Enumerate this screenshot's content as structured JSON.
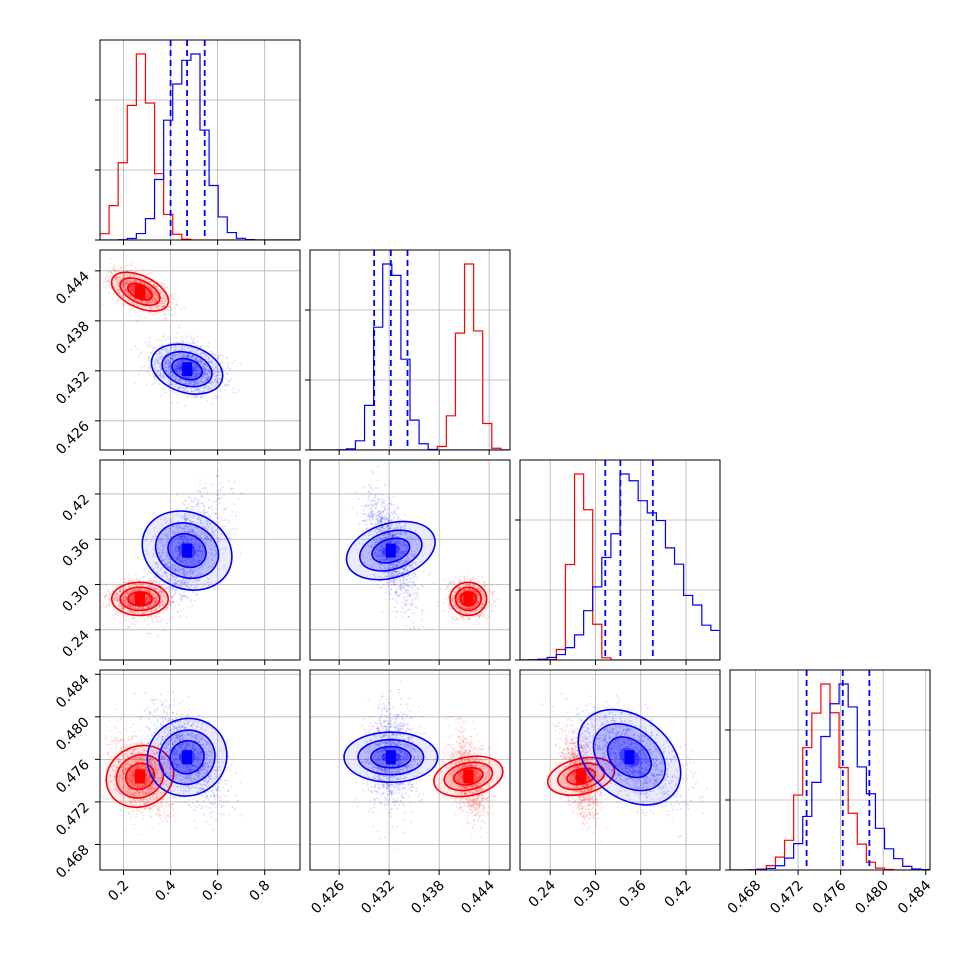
{
  "chart_data": {
    "type": "corner",
    "n_params": 4,
    "grid": true,
    "colors": {
      "red": "#ff0000",
      "blue": "#0000ff"
    },
    "params": [
      {
        "range": [
          0.1,
          0.95
        ],
        "ticks": [
          "0.2",
          "0.4",
          "0.6",
          "0.8"
        ],
        "tick_values": [
          0.2,
          0.4,
          0.6,
          0.8
        ]
      },
      {
        "range": [
          0.4225,
          0.4465
        ],
        "ticks": [
          "0.426",
          "0.432",
          "0.438",
          "0.444"
        ],
        "tick_values": [
          0.426,
          0.432,
          0.438,
          0.444
        ]
      },
      {
        "range": [
          0.2,
          0.465
        ],
        "ticks": [
          "0.24",
          "0.30",
          "0.36",
          "0.42"
        ],
        "tick_values": [
          0.24,
          0.3,
          0.36,
          0.42
        ]
      },
      {
        "range": [
          0.4656,
          0.4844
        ],
        "ticks": [
          "0.468",
          "0.472",
          "0.476",
          "0.480",
          "0.484"
        ],
        "tick_values": [
          0.468,
          0.472,
          0.476,
          0.48,
          0.484
        ]
      }
    ],
    "series": [
      {
        "color": "red",
        "mean": [
          0.27,
          0.4415,
          0.281,
          0.4744
        ],
        "sd": [
          0.06,
          0.0011,
          0.011,
          0.0018
        ]
      },
      {
        "color": "blue",
        "mean": [
          0.47,
          0.4322,
          0.345,
          0.4762
        ],
        "sd": [
          0.075,
          0.0015,
          0.035,
          0.0022
        ],
        "quantiles": [
          [
            0.4,
            0.47,
            0.545
          ],
          [
            0.4302,
            0.4322,
            0.4342
          ],
          [
            0.313,
            0.333,
            0.376
          ],
          [
            0.4728,
            0.4762,
            0.4787
          ]
        ]
      }
    ]
  }
}
